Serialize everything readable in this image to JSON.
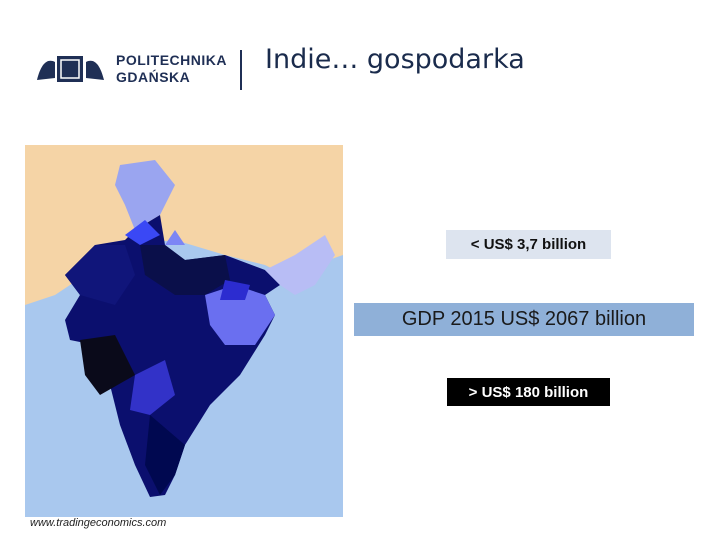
{
  "header": {
    "logo_line1": "POLITECHNIKA",
    "logo_line2": "GDAŃSKA",
    "title": "Indie… gospodarka"
  },
  "map": {
    "source": "www.tradingeconomics.com"
  },
  "legend": {
    "low": "< US$ 3,7 billion",
    "gdp": "GDP 2015 US$ 2067 billion",
    "high": "> US$ 180 billion"
  }
}
